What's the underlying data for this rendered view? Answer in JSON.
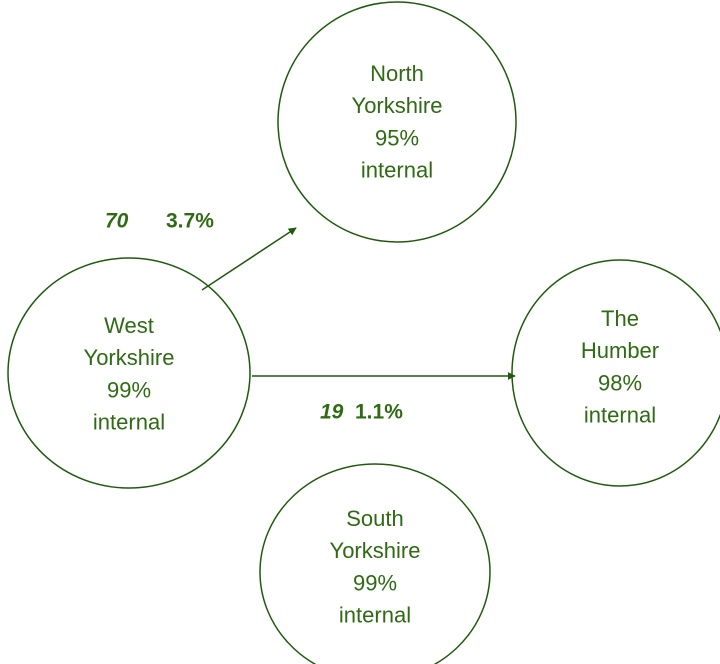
{
  "nodes": [
    {
      "lines": [
        "North",
        "Yorkshire",
        "95%",
        "internal"
      ]
    },
    {
      "lines": [
        "West",
        "Yorkshire",
        "99%",
        "internal"
      ]
    },
    {
      "lines": [
        "The",
        "Humber",
        "98%",
        "internal"
      ]
    },
    {
      "lines": [
        "South",
        "Yorkshire",
        "99%",
        "internal"
      ]
    }
  ],
  "flows": [
    {
      "count": "70",
      "percent": "3.7%"
    },
    {
      "count": "19",
      "percent": "1.1%"
    }
  ]
}
